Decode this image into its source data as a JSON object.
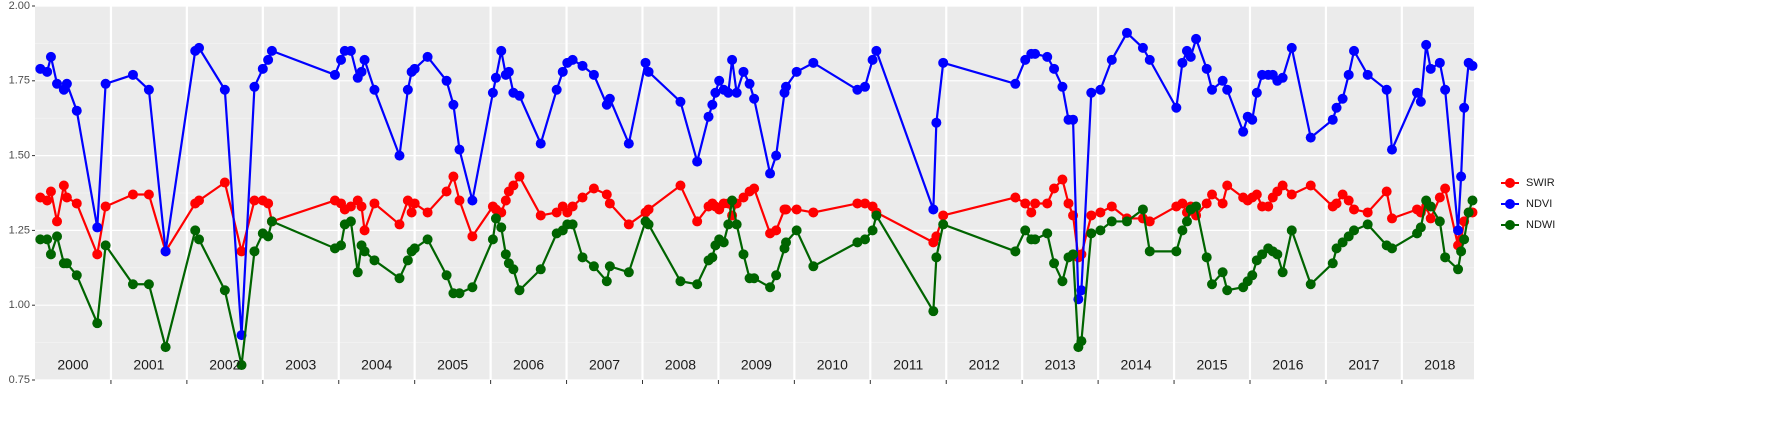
{
  "chart_data": {
    "type": "line",
    "x": [
      2000.07,
      2000.16,
      2000.21,
      2000.29,
      2000.38,
      2000.42,
      2000.55,
      2000.82,
      2000.93,
      2001.29,
      2001.5,
      2001.72,
      2002.11,
      2002.16,
      2002.5,
      2002.72,
      2002.89,
      2003.0,
      2003.07,
      2003.12,
      2003.95,
      2004.03,
      2004.08,
      2004.16,
      2004.25,
      2004.3,
      2004.34,
      2004.47,
      2004.8,
      2004.91,
      2004.96,
      2005.0,
      2005.17,
      2005.42,
      2005.51,
      2005.59,
      2005.76,
      2006.03,
      2006.07,
      2006.14,
      2006.2,
      2006.24,
      2006.3,
      2006.38,
      2006.66,
      2006.87,
      2006.95,
      2007.01,
      2007.08,
      2007.21,
      2007.36,
      2007.53,
      2007.57,
      2007.82,
      2008.04,
      2008.08,
      2008.5,
      2008.72,
      2008.87,
      2008.92,
      2008.96,
      2009.01,
      2009.07,
      2009.13,
      2009.18,
      2009.24,
      2009.33,
      2009.41,
      2009.47,
      2009.68,
      2009.76,
      2009.87,
      2009.89,
      2010.03,
      2010.25,
      2010.83,
      2010.93,
      2011.03,
      2011.08,
      2011.83,
      2011.87,
      2011.96,
      2012.91,
      2013.04,
      2013.12,
      2013.17,
      2013.33,
      2013.42,
      2013.53,
      2013.61,
      2013.67,
      2013.74,
      2013.78,
      2013.91,
      2014.03,
      2014.18,
      2014.38,
      2014.59,
      2014.68,
      2015.03,
      2015.11,
      2015.17,
      2015.22,
      2015.29,
      2015.43,
      2015.5,
      2015.64,
      2015.7,
      2015.91,
      2015.97,
      2016.03,
      2016.09,
      2016.16,
      2016.24,
      2016.3,
      2016.36,
      2016.43,
      2016.55,
      2016.8,
      2017.09,
      2017.14,
      2017.22,
      2017.3,
      2017.37,
      2017.55,
      2017.8,
      2017.87,
      2018.2,
      2018.25,
      2018.32,
      2018.38,
      2018.5,
      2018.57,
      2018.74,
      2018.78,
      2018.82,
      2018.88,
      2018.93
    ],
    "series": [
      {
        "name": "SWIR",
        "color": "#ff0000",
        "values": [
          1.36,
          1.35,
          1.38,
          1.28,
          1.4,
          1.36,
          1.34,
          1.17,
          1.33,
          1.37,
          1.37,
          1.18,
          1.34,
          1.35,
          1.41,
          1.18,
          1.35,
          1.35,
          1.34,
          1.28,
          1.35,
          1.34,
          1.32,
          1.33,
          1.35,
          1.33,
          1.25,
          1.34,
          1.27,
          1.35,
          1.31,
          1.34,
          1.31,
          1.38,
          1.43,
          1.35,
          1.23,
          1.33,
          1.32,
          1.31,
          1.35,
          1.38,
          1.4,
          1.43,
          1.3,
          1.31,
          1.33,
          1.31,
          1.33,
          1.36,
          1.39,
          1.37,
          1.34,
          1.27,
          1.31,
          1.32,
          1.4,
          1.28,
          1.33,
          1.34,
          1.33,
          1.32,
          1.34,
          1.34,
          1.3,
          1.34,
          1.36,
          1.38,
          1.39,
          1.24,
          1.25,
          1.32,
          1.32,
          1.32,
          1.31,
          1.34,
          1.34,
          1.33,
          1.31,
          1.21,
          1.23,
          1.3,
          1.36,
          1.34,
          1.31,
          1.34,
          1.34,
          1.39,
          1.42,
          1.34,
          1.3,
          1.16,
          1.17,
          1.3,
          1.31,
          1.33,
          1.29,
          1.29,
          1.28,
          1.33,
          1.34,
          1.31,
          1.33,
          1.3,
          1.34,
          1.37,
          1.34,
          1.4,
          1.36,
          1.35,
          1.36,
          1.37,
          1.33,
          1.33,
          1.36,
          1.38,
          1.4,
          1.37,
          1.4,
          1.33,
          1.34,
          1.37,
          1.35,
          1.32,
          1.31,
          1.38,
          1.29,
          1.32,
          1.31,
          1.33,
          1.29,
          1.36,
          1.39,
          1.2,
          1.22,
          1.28,
          1.31,
          1.31
        ]
      },
      {
        "name": "NDVI",
        "color": "#0000ff",
        "values": [
          1.79,
          1.78,
          1.83,
          1.74,
          1.72,
          1.74,
          1.65,
          1.26,
          1.74,
          1.77,
          1.72,
          1.18,
          1.85,
          1.86,
          1.72,
          0.9,
          1.73,
          1.79,
          1.82,
          1.85,
          1.77,
          1.82,
          1.85,
          1.85,
          1.76,
          1.78,
          1.82,
          1.72,
          1.5,
          1.72,
          1.78,
          1.79,
          1.83,
          1.75,
          1.67,
          1.52,
          1.35,
          1.71,
          1.76,
          1.85,
          1.77,
          1.78,
          1.71,
          1.7,
          1.54,
          1.72,
          1.78,
          1.81,
          1.82,
          1.8,
          1.77,
          1.67,
          1.69,
          1.54,
          1.81,
          1.78,
          1.68,
          1.48,
          1.63,
          1.67,
          1.71,
          1.75,
          1.72,
          1.71,
          1.82,
          1.71,
          1.78,
          1.74,
          1.69,
          1.44,
          1.5,
          1.71,
          1.73,
          1.78,
          1.81,
          1.72,
          1.73,
          1.82,
          1.85,
          1.32,
          1.61,
          1.81,
          1.74,
          1.82,
          1.84,
          1.84,
          1.83,
          1.79,
          1.73,
          1.62,
          1.62,
          1.02,
          1.05,
          1.71,
          1.72,
          1.82,
          1.91,
          1.86,
          1.82,
          1.66,
          1.81,
          1.85,
          1.83,
          1.89,
          1.79,
          1.72,
          1.75,
          1.72,
          1.58,
          1.63,
          1.62,
          1.71,
          1.77,
          1.77,
          1.77,
          1.75,
          1.76,
          1.86,
          1.56,
          1.62,
          1.66,
          1.69,
          1.77,
          1.85,
          1.77,
          1.72,
          1.52,
          1.71,
          1.68,
          1.87,
          1.79,
          1.81,
          1.72,
          1.25,
          1.43,
          1.66,
          1.81,
          1.8
        ]
      },
      {
        "name": "NDWI",
        "color": "#006400",
        "values": [
          1.22,
          1.22,
          1.17,
          1.23,
          1.14,
          1.14,
          1.1,
          0.94,
          1.2,
          1.07,
          1.07,
          0.86,
          1.25,
          1.22,
          1.05,
          0.8,
          1.18,
          1.24,
          1.23,
          1.28,
          1.19,
          1.2,
          1.27,
          1.28,
          1.11,
          1.2,
          1.18,
          1.15,
          1.09,
          1.15,
          1.18,
          1.19,
          1.22,
          1.1,
          1.04,
          1.04,
          1.06,
          1.22,
          1.29,
          1.26,
          1.17,
          1.14,
          1.12,
          1.05,
          1.12,
          1.24,
          1.25,
          1.27,
          1.27,
          1.16,
          1.13,
          1.08,
          1.13,
          1.11,
          1.28,
          1.27,
          1.08,
          1.07,
          1.15,
          1.16,
          1.2,
          1.22,
          1.21,
          1.27,
          1.35,
          1.27,
          1.17,
          1.09,
          1.09,
          1.06,
          1.1,
          1.19,
          1.21,
          1.25,
          1.13,
          1.21,
          1.22,
          1.25,
          1.3,
          0.98,
          1.16,
          1.27,
          1.18,
          1.25,
          1.22,
          1.22,
          1.24,
          1.14,
          1.08,
          1.16,
          1.17,
          0.86,
          0.88,
          1.24,
          1.25,
          1.28,
          1.28,
          1.32,
          1.18,
          1.18,
          1.25,
          1.28,
          1.32,
          1.33,
          1.16,
          1.07,
          1.11,
          1.05,
          1.06,
          1.08,
          1.1,
          1.15,
          1.17,
          1.19,
          1.18,
          1.17,
          1.11,
          1.25,
          1.07,
          1.14,
          1.19,
          1.21,
          1.23,
          1.25,
          1.27,
          1.2,
          1.19,
          1.24,
          1.26,
          1.35,
          1.33,
          1.28,
          1.16,
          1.12,
          1.18,
          1.22,
          1.31,
          1.35
        ]
      }
    ],
    "xlim": [
      2000,
      2018.95
    ],
    "xticks": [
      {
        "value": 2000.5,
        "label": "2000"
      },
      {
        "value": 2001.5,
        "label": "2001"
      },
      {
        "value": 2002.5,
        "label": "2002"
      },
      {
        "value": 2003.5,
        "label": "2003"
      },
      {
        "value": 2004.5,
        "label": "2004"
      },
      {
        "value": 2005.5,
        "label": "2005"
      },
      {
        "value": 2006.5,
        "label": "2006"
      },
      {
        "value": 2007.5,
        "label": "2007"
      },
      {
        "value": 2008.5,
        "label": "2008"
      },
      {
        "value": 2009.5,
        "label": "2009"
      },
      {
        "value": 2010.5,
        "label": "2010"
      },
      {
        "value": 2011.5,
        "label": "2011"
      },
      {
        "value": 2012.5,
        "label": "2012"
      },
      {
        "value": 2013.5,
        "label": "2013"
      },
      {
        "value": 2014.5,
        "label": "2014"
      },
      {
        "value": 2015.5,
        "label": "2015"
      },
      {
        "value": 2016.5,
        "label": "2016"
      },
      {
        "value": 2017.5,
        "label": "2017"
      },
      {
        "value": 2018.5,
        "label": "2018"
      }
    ],
    "xgrid": [
      2001,
      2002,
      2003,
      2004,
      2005,
      2006,
      2007,
      2008,
      2009,
      2010,
      2011,
      2012,
      2013,
      2014,
      2015,
      2016,
      2017,
      2018
    ],
    "ylim": [
      0.75,
      2.0
    ],
    "yticks": [
      0.75,
      {
        "value": 1.0,
        "label": "1.00"
      },
      1.25,
      {
        "value": 1.5,
        "label": "1.50"
      },
      1.75,
      {
        "value": 2.0,
        "label": "2.00"
      }
    ],
    "yminor_grid": [
      0.875,
      1.125,
      1.375,
      1.625,
      1.875
    ],
    "grid": true,
    "legend": "right"
  }
}
